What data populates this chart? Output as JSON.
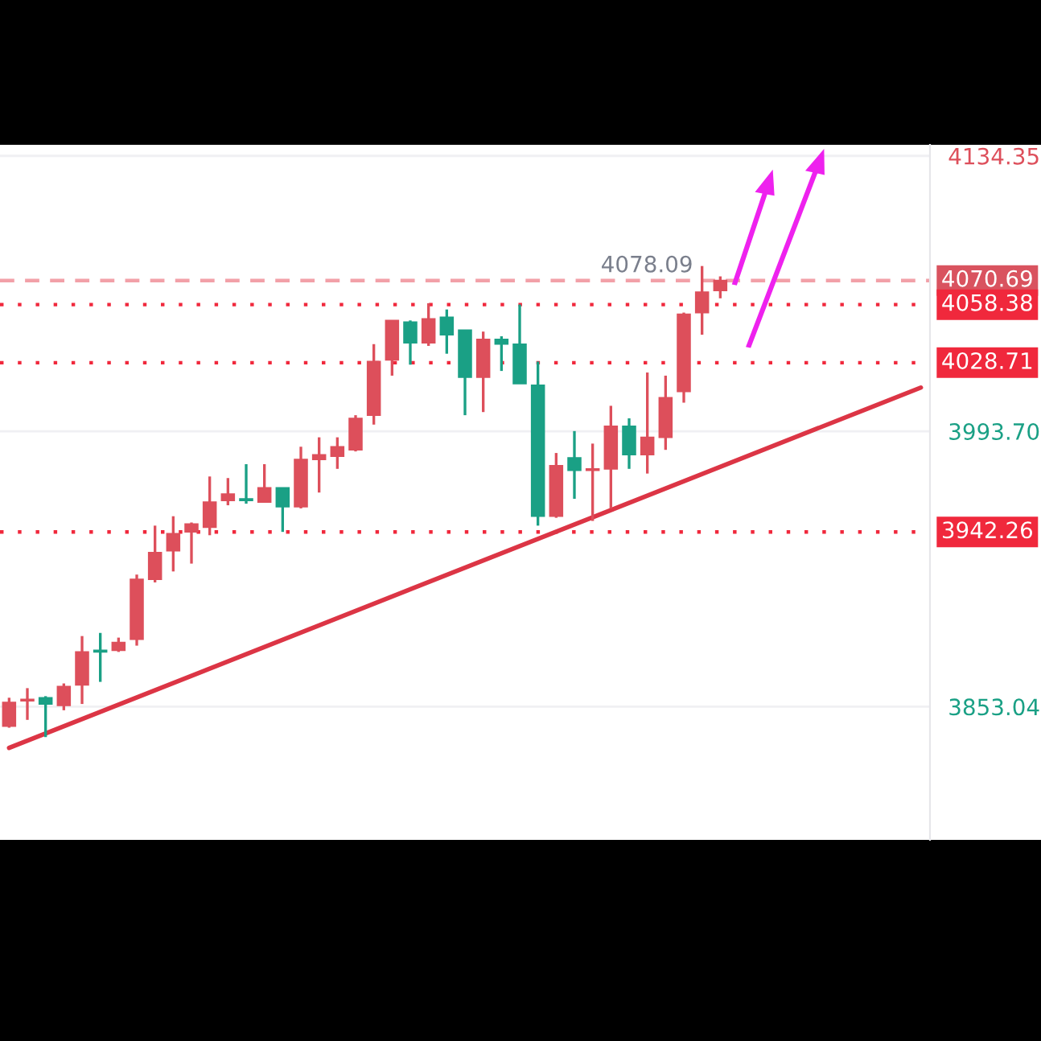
{
  "chart_data": {
    "type": "candlestick",
    "categories": [
      null,
      null,
      null,
      null,
      null,
      null,
      null,
      null,
      null,
      null,
      null,
      null,
      null,
      null,
      null,
      null,
      null,
      null,
      null,
      null,
      null,
      null,
      null,
      null,
      null,
      null,
      null,
      null,
      null,
      null,
      null,
      null,
      null,
      null,
      null,
      null,
      null,
      null,
      null,
      null,
      null,
      null,
      null,
      null,
      null,
      null,
      null,
      null,
      null,
      null,
      null
    ],
    "ohlc": [
      [
        3843.1,
        3857.6,
        3842.3,
        3855.2
      ],
      [
        3856.0,
        3862.5,
        3846.3,
        3856.8
      ],
      [
        3857.6,
        3858.4,
        3837.5,
        3854.4
      ],
      [
        3853.6,
        3864.9,
        3851.2,
        3863.3
      ],
      [
        3864.1,
        3889.1,
        3854.4,
        3881.0
      ],
      [
        3881.8,
        3890.7,
        3865.7,
        3881.0
      ],
      [
        3881.8,
        3888.3,
        3881.0,
        3885.8
      ],
      [
        3887.4,
        3920.5,
        3884.2,
        3918.1
      ],
      [
        3918.1,
        3945.5,
        3916.5,
        3931.8
      ],
      [
        3932.6,
        3950.3,
        3922.1,
        3941.4
      ],
      [
        3942.3,
        3947.1,
        3926.1,
        3946.3
      ],
      [
        3944.7,
        3970.6,
        3940.6,
        3957.5
      ],
      [
        3958.3,
        3969.8,
        3955.9,
        3961.6
      ],
      [
        3959.2,
        3976.9,
        3956.7,
        3958.3
      ],
      [
        3957.5,
        3976.9,
        3957.5,
        3964.8
      ],
      [
        3964.8,
        3964.8,
        3942.3,
        3955.1
      ],
      [
        3955.1,
        3985.8,
        3954.3,
        3979.3
      ],
      [
        3979.3,
        3990.6,
        3962.4,
        3981.7
      ],
      [
        3980.9,
        3990.6,
        3974.5,
        3985.8
      ],
      [
        3984.2,
        4001.9,
        3983.4,
        4000.3
      ],
      [
        4001.9,
        4038.2,
        3997.1,
        4029.3
      ],
      [
        4030.1,
        4050.3,
        4022.1,
        4050.3
      ],
      [
        4049.5,
        4050.3,
        4027.7,
        4038.9
      ],
      [
        4038.9,
        4059.1,
        4037.3,
        4051.1
      ],
      [
        4051.9,
        4055.9,
        4033.3,
        4043.0
      ],
      [
        4045.4,
        4045.4,
        4001.9,
        4021.3
      ],
      [
        4021.3,
        4044.6,
        4003.5,
        4040.6
      ],
      [
        4040.6,
        4042.2,
        4024.5,
        4038.2
      ],
      [
        4038.2,
        4058.4,
        4018.0,
        4018.0
      ],
      [
        4017.2,
        4029.3,
        3945.5,
        3950.3
      ],
      [
        3950.3,
        3982.6,
        3949.5,
        3976.1
      ],
      [
        3980.1,
        3993.8,
        3959.2,
        3973.7
      ],
      [
        3973.7,
        3987.4,
        3947.9,
        3974.5
      ],
      [
        3974.5,
        4006.7,
        3954.3,
        3996.3
      ],
      [
        3996.3,
        4000.3,
        3974.5,
        3981.7
      ],
      [
        3981.7,
        4023.7,
        3972.1,
        3990.6
      ],
      [
        3990.6,
        4022.1,
        3984.2,
        4010.8
      ],
      [
        4014.0,
        4054.3,
        4008.3,
        4053.5
      ],
      [
        4054.3,
        4078.09,
        4043.0,
        4064.8
      ],
      [
        4065.6,
        4072.8,
        4061.6,
        4070.69
      ],
      null,
      null,
      null,
      null,
      null,
      null,
      null,
      null,
      null,
      null,
      null
    ],
    "colors": [
      "#dd4f5b",
      "#dd4f5b",
      "#1aa085",
      "#dd4f5b",
      "#dd4f5b",
      "#1aa085",
      "#dd4f5b",
      "#dd4f5b",
      "#dd4f5b",
      "#dd4f5b",
      "#dd4f5b",
      "#dd4f5b",
      "#dd4f5b",
      "#1aa085",
      "#dd4f5b",
      "#1aa085",
      "#dd4f5b",
      "#dd4f5b",
      "#dd4f5b",
      "#dd4f5b",
      "#dd4f5b",
      "#dd4f5b",
      "#1aa085",
      "#dd4f5b",
      "#1aa085",
      "#1aa085",
      "#dd4f5b",
      "#1aa085",
      "#1aa085",
      "#1aa085",
      "#dd4f5b",
      "#1aa085",
      "#dd4f5b",
      "#dd4f5b",
      "#1aa085",
      "#dd4f5b",
      "#dd4f5b",
      "#dd4f5b",
      "#dd4f5b",
      "#dd4f5b",
      null,
      null,
      null,
      null,
      null,
      null,
      null,
      null,
      null,
      null,
      null
    ],
    "series": [
      {
        "type": "line",
        "values": [
          3832,
          null,
          null,
          null,
          null,
          null,
          null,
          null,
          null,
          null,
          null,
          null,
          null,
          null,
          null,
          null,
          null,
          null,
          null,
          null,
          null,
          null,
          null,
          null,
          null,
          null,
          null,
          null,
          null,
          null,
          null,
          null,
          null,
          null,
          null,
          null,
          null,
          null,
          null,
          null,
          null,
          null,
          null,
          null,
          null,
          null,
          null,
          null,
          null,
          null,
          4016
        ],
        "color": "#dc3545"
      }
    ],
    "ylim": [
      3785,
      4140
    ],
    "yticks": [
      3853.04,
      {
        "value": 3993.7,
        "label": "3993.70"
      },
      4134.35
    ],
    "grid": "y",
    "ref_lines": [
      {
        "axis": "y",
        "value": 4070.69,
        "label": "4070.69",
        "color": "#f2a0a8",
        "line_style": "dashed"
      },
      {
        "axis": "y",
        "value": 4058.38,
        "label": "4058.38",
        "color": "#f0283c",
        "line_style": "dotted"
      },
      {
        "axis": "y",
        "value": 4028.71,
        "label": "4028.71",
        "color": "#f0283c",
        "line_style": "dotted"
      },
      {
        "axis": "y",
        "value": 3942.26,
        "label": "3942.26",
        "color": "#f0283c",
        "line_style": "dotted"
      }
    ],
    "annotations": [
      "4078.09"
    ]
  }
}
